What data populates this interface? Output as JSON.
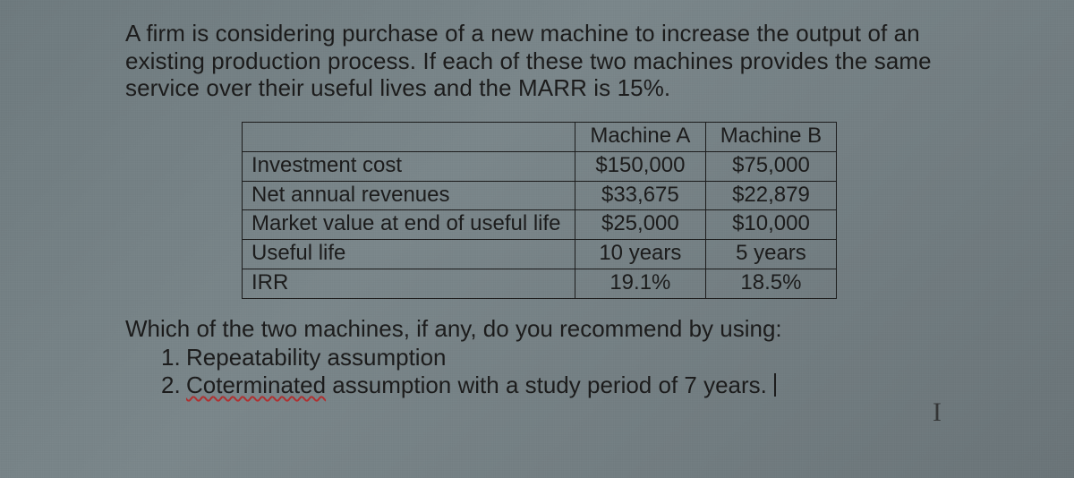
{
  "intro": "A firm is considering purchase of a new machine to increase the output of an existing production process.  If each of these two machines provides the same service over their useful lives and the MARR is 15%.",
  "table": {
    "headers": {
      "blank": "",
      "a": "Machine A",
      "b": "Machine B"
    },
    "rows": [
      {
        "label": "Investment cost",
        "a": "$150,000",
        "b": "$75,000"
      },
      {
        "label": "Net annual revenues",
        "a": "$33,675",
        "b": "$22,879"
      },
      {
        "label": "Market value at end of useful life",
        "a": "$25,000",
        "b": "$10,000"
      },
      {
        "label": "Useful life",
        "a": "10 years",
        "b": "5 years"
      },
      {
        "label": "IRR",
        "a": "19.1%",
        "b": "18.5%"
      }
    ]
  },
  "question": "Which of the two machines, if any, do you recommend by using:",
  "options": {
    "1": {
      "num": "1.",
      "text": "Repeatability assumption"
    },
    "2": {
      "num": "2.",
      "underlined": "Coterminated",
      "rest": " assumption with a study period of 7 years."
    }
  },
  "ibeam": "I",
  "colors": {
    "text": "#1a1a1a",
    "border": "#1a1a1a",
    "squiggle": "#b03030",
    "bg_from": "#6e7a7e",
    "bg_to": "#6a7478"
  }
}
